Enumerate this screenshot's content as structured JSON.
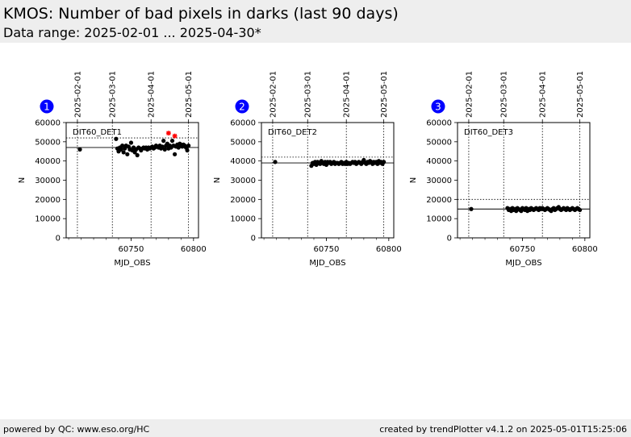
{
  "header": {
    "title": "KMOS: Number of bad pixels in darks (last 90 days)",
    "subtitle": "Data range: 2025-02-01 ... 2025-04-30*"
  },
  "footer": {
    "left": "powered by QC: www.eso.org/HC",
    "right": "created by trendPlotter v4.1.2 on 2025-05-01T15:25:06"
  },
  "colors": {
    "header_bg": "#eeeeee",
    "badge": "#0000ff",
    "points": "#000000",
    "outlier": "#ff0000"
  },
  "chart_data": [
    {
      "type": "scatter",
      "badge": "1",
      "label": "DIT60_DET1",
      "xlabel": "MJD_OBS",
      "ylabel": "N",
      "xlim": [
        60698,
        60804
      ],
      "ylim": [
        0,
        60000
      ],
      "yticks": [
        0,
        10000,
        20000,
        30000,
        40000,
        50000,
        60000
      ],
      "xticks": [
        60750,
        60800
      ],
      "date_ticks": [
        {
          "mjd": 60707,
          "label": "2025-02-01"
        },
        {
          "mjd": 60735,
          "label": "2025-03-01"
        },
        {
          "mjd": 60766,
          "label": "2025-04-01"
        },
        {
          "mjd": 60796,
          "label": "2025-05-01"
        }
      ],
      "mean": 47000,
      "upper_limit": 52000,
      "x": [
        60709,
        60738,
        60739,
        60740,
        60741,
        60742,
        60743,
        60744,
        60745,
        60746,
        60747,
        60748,
        60749,
        60750,
        60751,
        60752,
        60753,
        60754,
        60755,
        60756,
        60757,
        60758,
        60759,
        60760,
        60761,
        60762,
        60763,
        60764,
        60765,
        60766,
        60767,
        60768,
        60769,
        60770,
        60771,
        60772,
        60773,
        60774,
        60775,
        60776,
        60777,
        60778,
        60779,
        60780,
        60781,
        60782,
        60783,
        60784,
        60785,
        60786,
        60787,
        60788,
        60789,
        60790,
        60791,
        60792,
        60793,
        60794,
        60795,
        60796
      ],
      "y": [
        46000,
        51500,
        46500,
        45000,
        47000,
        46000,
        48000,
        44500,
        46500,
        48000,
        43500,
        47500,
        46000,
        49500,
        45500,
        47000,
        44500,
        46000,
        43000,
        47000,
        46500,
        45500,
        46500,
        47000,
        46500,
        47000,
        46000,
        47000,
        46500,
        47000,
        47500,
        46500,
        47000,
        48000,
        47500,
        47000,
        48000,
        46500,
        47500,
        50500,
        46000,
        48000,
        49000,
        46500,
        48000,
        47000,
        50500,
        48000,
        43500,
        47500,
        48500,
        47000,
        49000,
        48500,
        47500,
        48500,
        48000,
        47000,
        45500,
        48000
      ],
      "outliers": {
        "x": [
          60780,
          60785
        ],
        "y": [
          54500,
          53000
        ]
      }
    },
    {
      "type": "scatter",
      "badge": "2",
      "label": "DIT60_DET2",
      "xlabel": "MJD_OBS",
      "ylabel": "N",
      "xlim": [
        60698,
        60804
      ],
      "ylim": [
        0,
        60000
      ],
      "yticks": [
        0,
        10000,
        20000,
        30000,
        40000,
        50000,
        60000
      ],
      "xticks": [
        60750,
        60800
      ],
      "date_ticks": [
        {
          "mjd": 60707,
          "label": "2025-02-01"
        },
        {
          "mjd": 60735,
          "label": "2025-03-01"
        },
        {
          "mjd": 60766,
          "label": "2025-04-01"
        },
        {
          "mjd": 60796,
          "label": "2025-05-01"
        }
      ],
      "mean": 39000,
      "upper_limit": 42000,
      "x": [
        60709,
        60738,
        60739,
        60740,
        60741,
        60742,
        60743,
        60744,
        60745,
        60746,
        60747,
        60748,
        60749,
        60750,
        60751,
        60752,
        60753,
        60754,
        60755,
        60756,
        60757,
        60758,
        60759,
        60760,
        60761,
        60762,
        60763,
        60764,
        60765,
        60766,
        60767,
        60768,
        60769,
        60770,
        60771,
        60772,
        60773,
        60774,
        60775,
        60776,
        60777,
        60778,
        60779,
        60780,
        60781,
        60782,
        60783,
        60784,
        60785,
        60786,
        60787,
        60788,
        60789,
        60790,
        60791,
        60792,
        60793,
        60794,
        60795,
        60796
      ],
      "y": [
        39500,
        37500,
        39000,
        38500,
        39500,
        38000,
        39500,
        39000,
        38500,
        40000,
        39000,
        38500,
        39500,
        38000,
        39500,
        39000,
        39500,
        38500,
        39000,
        39500,
        38500,
        39000,
        39000,
        38500,
        39000,
        39500,
        38500,
        39000,
        38500,
        39500,
        38500,
        39000,
        38500,
        39000,
        39500,
        39000,
        39500,
        38500,
        39000,
        39500,
        39000,
        38500,
        39500,
        40500,
        39000,
        38500,
        39500,
        39000,
        40000,
        39500,
        38500,
        39500,
        39000,
        39500,
        38500,
        40000,
        39000,
        39500,
        38500,
        39500
      ]
    },
    {
      "type": "scatter",
      "badge": "3",
      "label": "DIT60_DET3",
      "xlabel": "MJD_OBS",
      "ylabel": "N",
      "xlim": [
        60698,
        60804
      ],
      "ylim": [
        0,
        60000
      ],
      "yticks": [
        0,
        10000,
        20000,
        30000,
        40000,
        50000,
        60000
      ],
      "xticks": [
        60750,
        60800
      ],
      "date_ticks": [
        {
          "mjd": 60707,
          "label": "2025-02-01"
        },
        {
          "mjd": 60735,
          "label": "2025-03-01"
        },
        {
          "mjd": 60766,
          "label": "2025-04-01"
        },
        {
          "mjd": 60796,
          "label": "2025-05-01"
        }
      ],
      "mean": 15000,
      "upper_limit": 20000,
      "x": [
        60709,
        60738,
        60739,
        60740,
        60741,
        60742,
        60743,
        60744,
        60745,
        60746,
        60747,
        60748,
        60749,
        60750,
        60751,
        60752,
        60753,
        60754,
        60755,
        60756,
        60757,
        60758,
        60759,
        60760,
        60761,
        60762,
        60763,
        60764,
        60765,
        60766,
        60767,
        60768,
        60769,
        60770,
        60771,
        60772,
        60773,
        60774,
        60775,
        60776,
        60777,
        60778,
        60779,
        60780,
        60781,
        60782,
        60783,
        60784,
        60785,
        60786,
        60787,
        60788,
        60789,
        60790,
        60791,
        60792,
        60793,
        60794,
        60795,
        60796
      ],
      "y": [
        15000,
        15500,
        14500,
        15000,
        14000,
        15500,
        14500,
        15000,
        14000,
        15500,
        15000,
        14500,
        14000,
        15500,
        15000,
        14500,
        15500,
        14000,
        15000,
        14500,
        15500,
        15000,
        14500,
        15000,
        15500,
        15000,
        14500,
        15500,
        15000,
        15500,
        15000,
        14500,
        15000,
        15500,
        15000,
        14500,
        14000,
        15000,
        15500,
        14500,
        15000,
        15500,
        16000,
        15000,
        14500,
        15000,
        15500,
        15000,
        14500,
        15500,
        15000,
        14500,
        15000,
        15500,
        15000,
        14500,
        15000,
        15500,
        15000,
        14500
      ]
    }
  ]
}
